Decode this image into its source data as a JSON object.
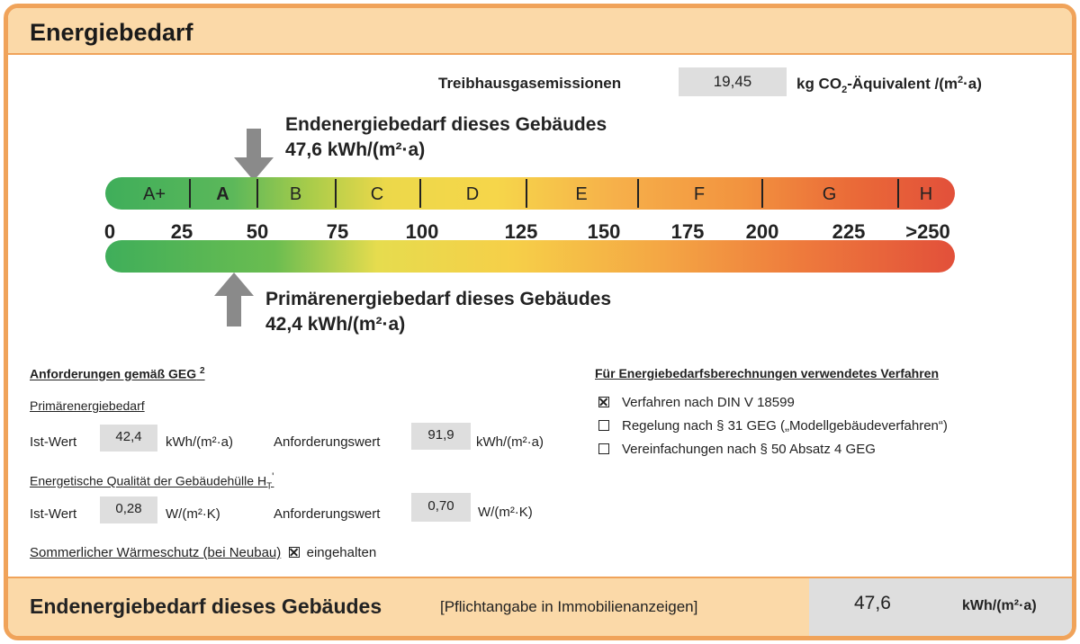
{
  "title": "Energiebedarf",
  "emissions": {
    "label": "Treibhausgasemissionen",
    "value": "19,45",
    "unit_pre": "kg CO",
    "unit_sub": "2",
    "unit_mid": "-Äquivalent /(m",
    "unit_sup": "2",
    "unit_post": "·a)"
  },
  "end_energy": {
    "label": "Endenergiebedarf dieses Gebäudes",
    "value_text": "47,6 kWh/(m²·a)",
    "value": 47.6
  },
  "primary_energy": {
    "label": "Primärenergiebedarf dieses Gebäudes",
    "value_text": "42,4 kWh/(m²·a)",
    "value": 42.4
  },
  "scale": {
    "classes": [
      "A+",
      "A",
      "B",
      "C",
      "D",
      "E",
      "F",
      "G",
      "H"
    ],
    "ticks": [
      "0",
      "25",
      "50",
      "75",
      "100",
      "125",
      "150",
      "175",
      "200",
      "225",
      ">250"
    ]
  },
  "requirements": {
    "heading": "Anforderungen gemäß GEG",
    "heading_sup": "2",
    "primary_heading": "Primärenergiebedarf",
    "ist_label": "Ist-Wert",
    "primary_ist": "42,4",
    "primary_unit": "kWh/(m²·a)",
    "anf_label": "Anforderungswert",
    "primary_anf": "91,9",
    "envelope_heading": "Energetische Qualität der Gebäudehülle H",
    "envelope_sub": "T",
    "envelope_prime": "'",
    "envelope_ist": "0,28",
    "envelope_unit": "W/(m²·K)",
    "envelope_anf": "0,70",
    "summer_label": "Sommerlicher Wärmeschutz (bei Neubau)",
    "summer_checked": true,
    "summer_value": "eingehalten"
  },
  "method": {
    "heading": "Für Energiebedarfsberechnungen verwendetes Verfahren",
    "options": [
      {
        "label": "Verfahren nach DIN V 18599",
        "checked": true
      },
      {
        "label": "Regelung nach § 31 GEG („Modellgebäudeverfahren“)",
        "checked": false
      },
      {
        "label": "Vereinfachungen nach § 50 Absatz 4 GEG",
        "checked": false
      }
    ]
  },
  "footer": {
    "label": "Endenergiebedarf dieses Gebäudes",
    "note": "[Pflichtangabe in Immobilienanzeigen]",
    "value": "47,6",
    "unit": "kWh/(m²·a)"
  }
}
